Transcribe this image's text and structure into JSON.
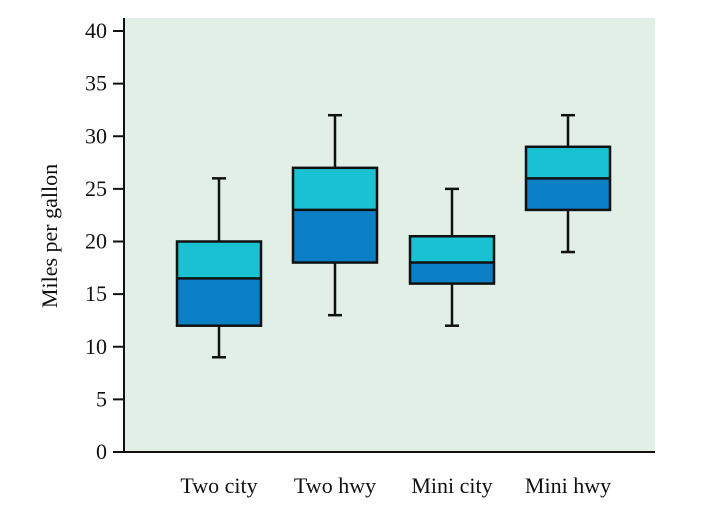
{
  "chart_data": {
    "type": "box",
    "title": "",
    "xlabel": "",
    "ylabel": "Miles per gallon",
    "ylim": [
      0,
      40
    ],
    "yticks": [
      0,
      5,
      10,
      15,
      20,
      25,
      30,
      35,
      40
    ],
    "grid": false,
    "categories": [
      "Two city",
      "Two hwy",
      "Mini city",
      "Mini hwy"
    ],
    "boxes": [
      {
        "category": "Two city",
        "min": 9,
        "q1": 12,
        "median": 16.5,
        "q3": 20,
        "max": 26
      },
      {
        "category": "Two hwy",
        "min": 13,
        "q1": 18,
        "median": 23,
        "q3": 27,
        "max": 32
      },
      {
        "category": "Mini city",
        "min": 12,
        "q1": 16,
        "median": 18,
        "q3": 20.5,
        "max": 25
      },
      {
        "category": "Mini hwy",
        "min": 19,
        "q1": 23,
        "median": 26,
        "q3": 29,
        "max": 32
      }
    ],
    "colors": {
      "plot_background": "#e1efe6",
      "upper_box": "#19c1d2",
      "lower_box": "#0a7fc6",
      "line": "#111111"
    }
  }
}
